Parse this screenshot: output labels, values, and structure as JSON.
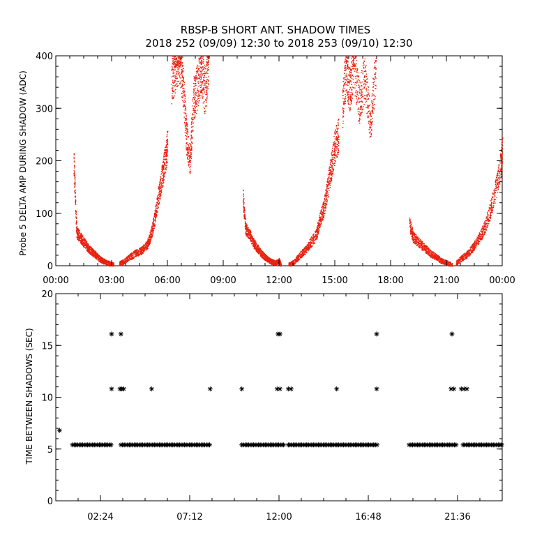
{
  "title_line1": "RBSP-B SHORT ANT. SHADOW TIMES",
  "title_line2": "2018 252 (09/09) 12:30 to 2018 253 (09/10) 12:30",
  "colors": {
    "points_top": "#e8210f",
    "points_bottom": "#000000",
    "axes": "#000000"
  },
  "chart_data": [
    {
      "type": "scatter",
      "ylabel": "Probe 5 DELTA AMP DURING SHADOW (ADC)",
      "xlabel": "",
      "xlim": [
        0,
        24
      ],
      "ylim": [
        0,
        400
      ],
      "grid": false,
      "x_tick_values": [
        0,
        3,
        6,
        9,
        12,
        15,
        18,
        21,
        24
      ],
      "x_tick_labels": [
        "00:00",
        "03:00",
        "06:00",
        "09:00",
        "12:00",
        "15:00",
        "18:00",
        "21:00",
        "00:00"
      ],
      "y_tick_values": [
        0,
        100,
        200,
        300,
        400
      ],
      "y_tick_labels": [
        "0",
        "100",
        "200",
        "300",
        "400"
      ],
      "series": [
        {
          "name": "Probe 5 delta amp",
          "segments": [
            {
              "x": [
                0.95,
                1.1,
                1.3,
                1.5,
                1.7,
                1.9,
                2.1,
                2.3,
                2.5,
                2.7,
                2.9,
                3.1
              ],
              "y": [
                200,
                65,
                55,
                45,
                35,
                28,
                22,
                15,
                10,
                7,
                4,
                2
              ]
            },
            {
              "x": [
                3.4,
                3.7,
                4.0,
                4.3,
                4.6,
                4.9,
                5.1,
                5.3,
                5.5,
                5.7,
                5.85,
                6.0
              ],
              "y": [
                4,
                10,
                18,
                25,
                30,
                40,
                60,
                90,
                130,
                170,
                200,
                230
              ]
            },
            {
              "x": [
                6.2,
                6.4,
                6.6,
                6.8,
                7.0,
                7.2,
                7.4,
                7.6,
                7.8,
                8.0,
                8.2
              ],
              "y": [
                350,
                380,
                400,
                360,
                250,
                200,
                320,
                340,
                380,
                330,
                390
              ]
            },
            {
              "x": [
                10.05,
                10.2,
                10.4,
                10.6,
                10.8,
                11.0,
                11.2,
                11.4,
                11.6,
                11.8,
                12.0,
                12.1
              ],
              "y": [
                130,
                70,
                60,
                45,
                35,
                25,
                18,
                12,
                8,
                6,
                10,
                0
              ]
            },
            {
              "x": [
                12.5,
                12.8,
                13.1,
                13.4,
                13.7,
                14.0,
                14.2,
                14.4,
                14.6,
                14.8,
                15.0,
                15.2
              ],
              "y": [
                2,
                8,
                20,
                30,
                45,
                60,
                90,
                110,
                150,
                190,
                230,
                250
              ]
            },
            {
              "x": [
                15.4,
                15.6,
                15.8,
                16.0,
                16.3,
                16.6,
                16.9,
                17.2
              ],
              "y": [
                300,
                380,
                330,
                390,
                310,
                360,
                270,
                385
              ]
            },
            {
              "x": [
                19.0,
                19.2,
                19.5,
                19.8,
                20.1,
                20.4,
                20.7,
                21.0,
                21.3
              ],
              "y": [
                80,
                55,
                45,
                35,
                25,
                18,
                10,
                6,
                2
              ]
            },
            {
              "x": [
                21.5,
                21.8,
                22.1,
                22.4,
                22.7,
                23.0,
                23.3,
                23.6,
                23.9,
                24.0
              ],
              "y": [
                5,
                15,
                22,
                35,
                50,
                70,
                100,
                140,
                190,
                220
              ]
            }
          ]
        }
      ]
    },
    {
      "type": "scatter",
      "ylabel": "TIME BETWEEN SHADOWS (SEC)",
      "xlabel": "",
      "xlim": [
        0,
        24
      ],
      "ylim": [
        0,
        20
      ],
      "grid": false,
      "x_tick_values": [
        2.4,
        7.2,
        12.0,
        16.8,
        21.6
      ],
      "x_tick_labels": [
        "02:24",
        "07:12",
        "12:00",
        "16:48",
        "21:36"
      ],
      "y_tick_values": [
        0,
        5,
        10,
        15,
        20
      ],
      "y_tick_labels": [
        "0",
        "5",
        "10",
        "15",
        "20"
      ],
      "series": [
        {
          "name": "Time between shadows",
          "marker": "asterisk",
          "baseline_value": 5.4,
          "baseline_ranges": [
            [
              0.9,
              3.05
            ],
            [
              3.5,
              8.35
            ],
            [
              10.0,
              12.3
            ],
            [
              12.5,
              17.3
            ],
            [
              19.0,
              21.55
            ],
            [
              21.9,
              24.0
            ]
          ],
          "points": [
            {
              "x": 0.2,
              "y": 6.8
            },
            {
              "x": 3.0,
              "y": 16.1
            },
            {
              "x": 3.5,
              "y": 16.1
            },
            {
              "x": 3.0,
              "y": 10.8
            },
            {
              "x": 3.45,
              "y": 10.8
            },
            {
              "x": 3.55,
              "y": 10.8
            },
            {
              "x": 3.65,
              "y": 10.8
            },
            {
              "x": 5.15,
              "y": 10.8
            },
            {
              "x": 8.3,
              "y": 10.8
            },
            {
              "x": 10.0,
              "y": 10.8
            },
            {
              "x": 11.9,
              "y": 10.8
            },
            {
              "x": 12.05,
              "y": 10.8
            },
            {
              "x": 12.5,
              "y": 10.8
            },
            {
              "x": 12.65,
              "y": 10.8
            },
            {
              "x": 11.95,
              "y": 16.1
            },
            {
              "x": 12.05,
              "y": 16.1
            },
            {
              "x": 15.1,
              "y": 10.8
            },
            {
              "x": 17.25,
              "y": 16.1
            },
            {
              "x": 17.25,
              "y": 10.8
            },
            {
              "x": 21.3,
              "y": 16.1
            },
            {
              "x": 21.25,
              "y": 10.8
            },
            {
              "x": 21.4,
              "y": 10.8
            },
            {
              "x": 21.8,
              "y": 10.8
            },
            {
              "x": 21.95,
              "y": 10.8
            },
            {
              "x": 22.1,
              "y": 10.8
            }
          ]
        }
      ]
    }
  ]
}
